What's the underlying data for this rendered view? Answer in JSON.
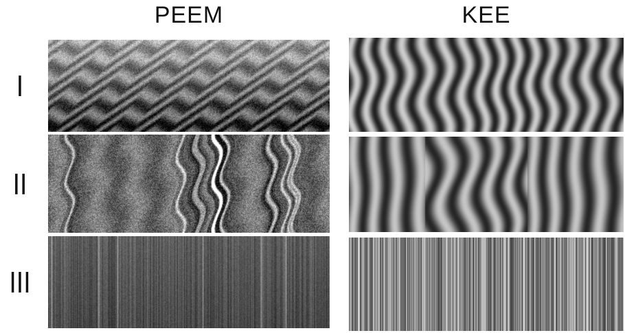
{
  "titles": {
    "left": "PEEM",
    "right": "KEE"
  },
  "rows": [
    "I",
    "II",
    "III"
  ],
  "panels": [
    {
      "id": "peem-I",
      "style": "zigzag",
      "seed": 11
    },
    {
      "id": "kee-I",
      "style": "wavy",
      "seed": 21
    },
    {
      "id": "peem-II",
      "style": "domains",
      "seed": 31
    },
    {
      "id": "kee-II",
      "style": "wavy2",
      "seed": 41
    },
    {
      "id": "peem-III",
      "style": "vstripes",
      "seed": 51
    },
    {
      "id": "kee-III",
      "style": "barcode",
      "seed": 61
    }
  ]
}
